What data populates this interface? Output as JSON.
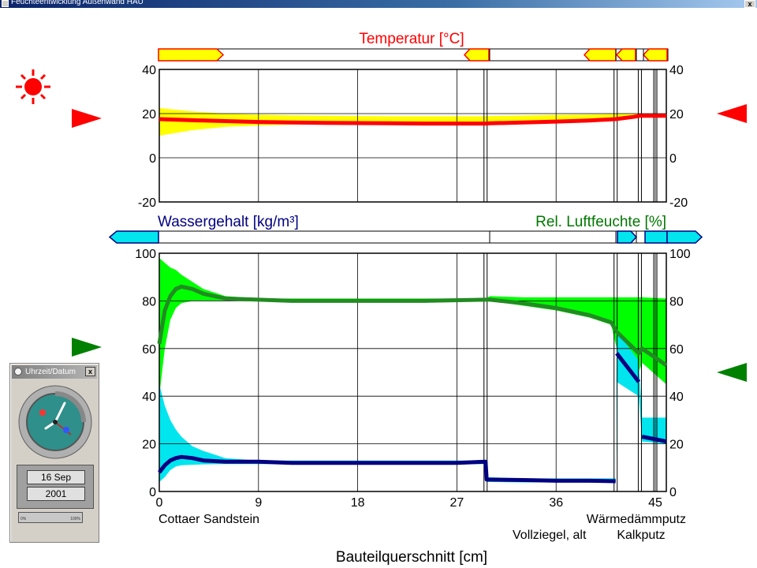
{
  "window": {
    "title": "Feuchteentwicklung Außenwand HAU",
    "close_label": "x"
  },
  "panels": {
    "temperature_title": "Temperatur [°C]",
    "water_title": "Wassergehalt [kg/m³]",
    "humidity_title": "Rel. Luftfeuchte [%]",
    "x_axis_title": "Bauteilquerschnitt [cm]"
  },
  "materials": {
    "m1": "Cottaer Sandstein",
    "m2": "Vollziegel, alt",
    "m3": "Wärmedämmputz",
    "m4": "Kalkputz"
  },
  "clock_widget": {
    "title": "Uhrzeit/Datum",
    "close_label": "x",
    "day": "16 Sep",
    "year": "2001",
    "progress_min": "0%",
    "progress_max": "100%",
    "progress_fraction": 0.0
  },
  "colors": {
    "temperature": "#ff0000",
    "temp_band": "#ffff00",
    "water": "#000080",
    "water_band": "#00e5ee",
    "humidity": "#007700",
    "humidity_line": "#228b22",
    "humidity_band": "#00ff00",
    "sun": "#ff0000",
    "arrow_green": "#008000"
  },
  "icons": {
    "sun": "sun-icon",
    "indoor_arrow": "arrow-left-icon",
    "outdoor_arrow": "arrow-right-icon"
  },
  "chart_data": [
    {
      "type": "line",
      "title": "Temperatur [°C]",
      "xlabel": "Bauteilquerschnitt [cm]",
      "xlim": [
        0,
        46
      ],
      "ylim": [
        -20,
        40
      ],
      "x_ticks": [
        "0",
        "9",
        "18",
        "27",
        "36",
        "45"
      ],
      "y_ticks": [
        "40",
        "20",
        "0",
        "-20"
      ],
      "layer_boundaries": [
        29.6,
        41.4,
        43.6,
        45.0
      ],
      "grid": true,
      "series": [
        {
          "name": "Temperatur",
          "color": "#ff0000",
          "x": [
            0,
            3,
            6,
            9,
            12,
            15,
            18,
            21,
            24,
            27,
            29.6,
            30,
            33,
            36,
            39,
            41.4,
            43,
            43.6,
            46
          ],
          "y": [
            17.5,
            17.0,
            16.6,
            16.2,
            16.0,
            15.8,
            15.7,
            15.6,
            15.5,
            15.5,
            15.5,
            15.6,
            16.0,
            16.4,
            16.9,
            17.5,
            18.5,
            19.0,
            19.0
          ],
          "band_low": [
            10.0,
            12.5,
            14.0,
            14.6,
            15.0,
            15.1,
            15.2,
            15.2,
            15.3,
            15.3,
            15.3,
            15.4,
            15.8,
            16.2,
            16.7,
            17.3,
            18.3,
            18.8,
            18.8
          ],
          "band_high": [
            22.5,
            21.0,
            20.0,
            19.5,
            19.2,
            19.0,
            18.9,
            18.8,
            18.8,
            18.8,
            18.8,
            18.9,
            19.1,
            19.4,
            19.6,
            19.8,
            20.0,
            20.0,
            20.0
          ]
        }
      ]
    },
    {
      "type": "line",
      "title": "Wassergehalt [kg/m³] / Rel. Luftfeuchte [%]",
      "xlabel": "Bauteilquerschnitt [cm]",
      "xlim": [
        0,
        46
      ],
      "ylim": [
        0,
        100
      ],
      "x_ticks": [
        "0",
        "9",
        "18",
        "27",
        "36",
        "45"
      ],
      "y_ticks": [
        "100",
        "80",
        "60",
        "40",
        "20",
        "0"
      ],
      "layer_boundaries": [
        29.6,
        41.4,
        43.6,
        45.0
      ],
      "grid": true,
      "series": [
        {
          "name": "Rel. Luftfeuchte",
          "color": "#228b22",
          "x": [
            0,
            0.5,
            1,
            1.5,
            2,
            3,
            4,
            6,
            9,
            12,
            18,
            24,
            29.6,
            30,
            33,
            36,
            39,
            41.0,
            41.5,
            43.5,
            43.8,
            46
          ],
          "y": [
            62,
            76,
            82,
            85,
            86,
            85,
            83,
            81,
            80.5,
            80,
            80,
            80,
            80.5,
            80.5,
            79,
            77,
            74,
            71,
            67,
            58,
            60,
            53
          ],
          "band_low": [
            40,
            60,
            72,
            77,
            79,
            80,
            80,
            80,
            80,
            80,
            80,
            80,
            80,
            80,
            78,
            76,
            73,
            70,
            60,
            50,
            54,
            45
          ],
          "band_high": [
            98,
            96,
            94,
            93,
            91,
            88,
            85,
            82,
            81,
            81,
            81,
            81,
            81,
            82,
            81.5,
            81.5,
            81.5,
            81.5,
            81.5,
            81.5,
            81.5,
            81
          ]
        },
        {
          "name": "Wassergehalt",
          "color": "#000080",
          "x": [
            0,
            0.5,
            1,
            1.5,
            2,
            3,
            4,
            6,
            9,
            12,
            18,
            24,
            27,
            29.6,
            29.7,
            33,
            36,
            39,
            41.4,
            41.5,
            43.5,
            43.8,
            46
          ],
          "y": [
            8,
            11,
            13,
            14,
            14.5,
            14,
            13,
            12.5,
            12.5,
            12,
            12,
            12,
            12,
            12.5,
            5,
            4.8,
            4.5,
            4.5,
            4.3,
            58,
            46,
            23,
            21
          ],
          "band_low": [
            4,
            6,
            9,
            10.5,
            11,
            11.2,
            11.4,
            11.5,
            11.5,
            11.5,
            11.5,
            11.5,
            11.5,
            11.5,
            4,
            3.8,
            3.8,
            3.8,
            3.8,
            46,
            40,
            21,
            20
          ],
          "band_high": [
            45,
            36,
            30,
            26,
            23,
            19,
            17,
            14,
            13,
            13,
            13,
            13,
            13,
            13,
            6,
            5.5,
            5.5,
            5.5,
            5.5,
            67,
            55,
            31,
            31
          ]
        }
      ]
    }
  ]
}
